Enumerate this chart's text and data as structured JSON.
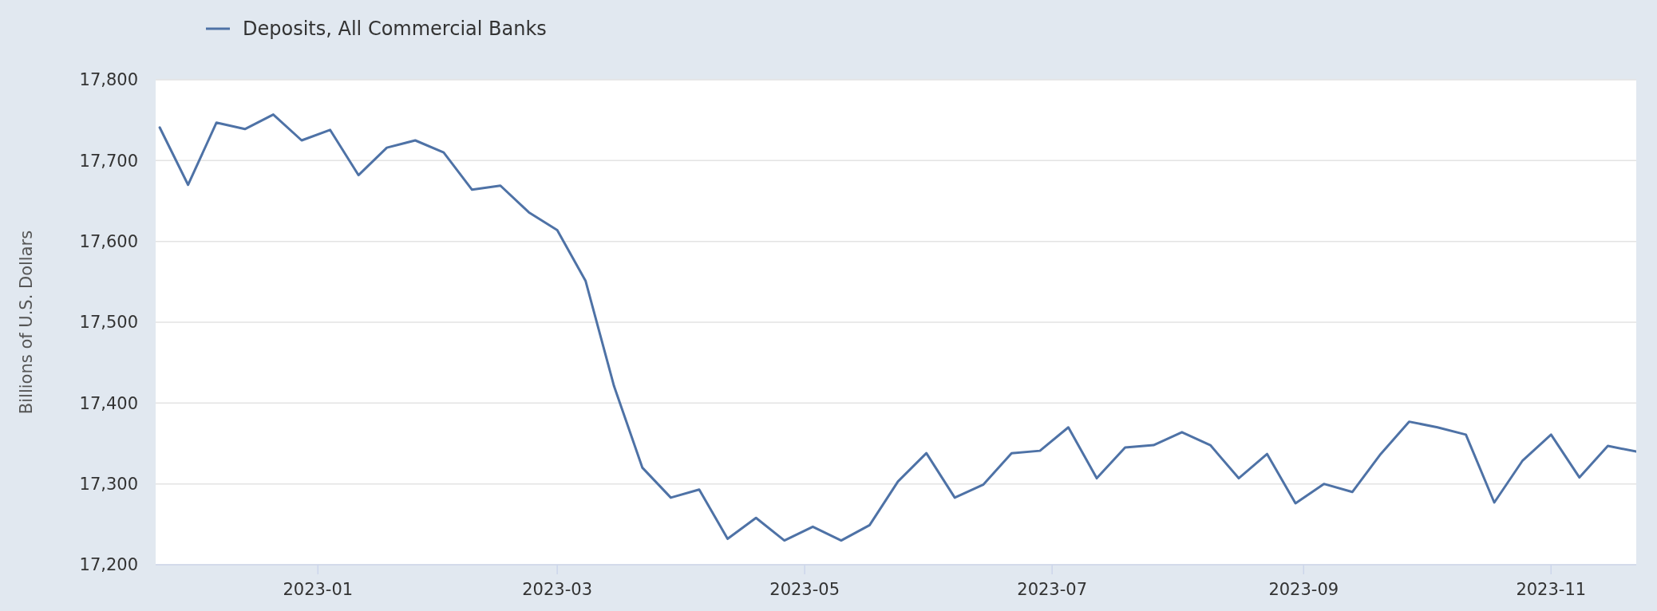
{
  "chart_data": {
    "type": "line",
    "ylabel": "Billions of U.S. Dollars",
    "x": [
      "2022-11-23",
      "2022-11-30",
      "2022-12-07",
      "2022-12-14",
      "2022-12-21",
      "2022-12-28",
      "2023-01-04",
      "2023-01-11",
      "2023-01-18",
      "2023-01-25",
      "2023-02-01",
      "2023-02-08",
      "2023-02-15",
      "2023-02-22",
      "2023-03-01",
      "2023-03-08",
      "2023-03-15",
      "2023-03-22",
      "2023-03-29",
      "2023-04-05",
      "2023-04-12",
      "2023-04-19",
      "2023-04-26",
      "2023-05-03",
      "2023-05-10",
      "2023-05-17",
      "2023-05-24",
      "2023-05-31",
      "2023-06-07",
      "2023-06-14",
      "2023-06-21",
      "2023-06-28",
      "2023-07-05",
      "2023-07-12",
      "2023-07-19",
      "2023-07-26",
      "2023-08-02",
      "2023-08-09",
      "2023-08-16",
      "2023-08-23",
      "2023-08-30",
      "2023-09-06",
      "2023-09-13",
      "2023-09-20",
      "2023-09-27",
      "2023-10-04",
      "2023-10-11",
      "2023-10-18",
      "2023-10-25",
      "2023-11-01",
      "2023-11-08",
      "2023-11-15",
      "2023-11-22"
    ],
    "series": [
      {
        "name": "Deposits, All Commercial Banks",
        "color": "#4e72a6",
        "values": [
          17741,
          17670,
          17747,
          17739,
          17757,
          17725,
          17738,
          17682,
          17716,
          17725,
          17710,
          17664,
          17669,
          17636,
          17614,
          17551,
          17421,
          17320,
          17283,
          17293,
          17232,
          17258,
          17230,
          17247,
          17230,
          17249,
          17303,
          17338,
          17283,
          17299,
          17338,
          17341,
          17370,
          17307,
          17345,
          17348,
          17364,
          17348,
          17307,
          17337,
          17276,
          17300,
          17290,
          17337,
          17377,
          17370,
          17361,
          17277,
          17329,
          17361,
          17308,
          17347,
          17340
        ]
      }
    ],
    "xlim": [
      "2022-11-22",
      "2023-11-22"
    ],
    "xticks": [
      "2023-01",
      "2023-03",
      "2023-05",
      "2023-07",
      "2023-09",
      "2023-11"
    ],
    "ylim": [
      17200,
      17800
    ],
    "yticks": [
      {
        "value": 17200,
        "label": "17,200"
      },
      {
        "value": 17300,
        "label": "17,300"
      },
      {
        "value": 17400,
        "label": "17,400"
      },
      {
        "value": 17500,
        "label": "17,500"
      },
      {
        "value": 17600,
        "label": "17,600"
      },
      {
        "value": 17700,
        "label": "17,700"
      },
      {
        "value": 17800,
        "label": "17,800"
      }
    ],
    "grid": "y",
    "legend": "top left",
    "line_style": "solid",
    "marker": "none"
  }
}
